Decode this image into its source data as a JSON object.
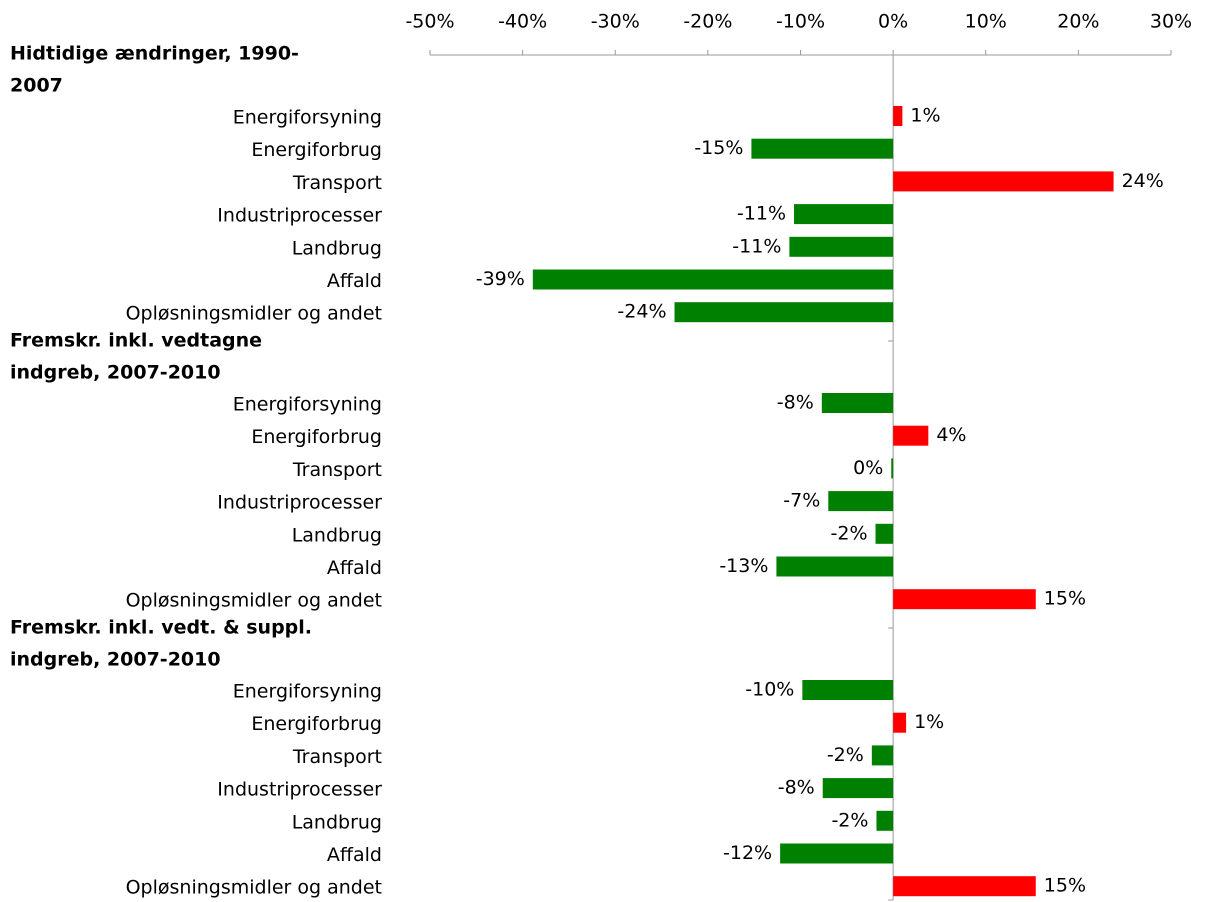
{
  "chart_data": {
    "type": "grouped-hbar",
    "xlim": [
      -50,
      30
    ],
    "xticks": [
      {
        "value": -50,
        "label": "-50%"
      },
      {
        "value": -40,
        "label": "-40%"
      },
      {
        "value": -30,
        "label": "-30%"
      },
      {
        "value": -20,
        "label": "-20%"
      },
      {
        "value": -10,
        "label": "-10%"
      },
      {
        "value": 0,
        "label": "0%"
      },
      {
        "value": 10,
        "label": "10%"
      },
      {
        "value": 20,
        "label": "20%"
      },
      {
        "value": 30,
        "label": "30%"
      }
    ],
    "colors": {
      "positive": "#ff0000",
      "negative": "#008000"
    },
    "groups": [
      {
        "name": [
          "Hidtidige ændringer, 1990-",
          "2007"
        ],
        "categories": [
          "Energiforsyning",
          "Energiforbrug",
          "Transport",
          "Industriprocesser",
          "Landbrug",
          "Affald",
          "Opløsningsmidler og andet"
        ],
        "values": [
          1,
          -15.3,
          23.8,
          -10.7,
          -11.2,
          -38.9,
          -23.6
        ],
        "value_labels": [
          "1%",
          "-15%",
          "24%",
          "-11%",
          "-11%",
          "-39%",
          "-24%"
        ]
      },
      {
        "name": [
          "Fremskr. inkl. vedtagne",
          "indgreb, 2007-2010"
        ],
        "categories": [
          "Energiforsyning",
          "Energiforbrug",
          "Transport",
          "Industriprocesser",
          "Landbrug",
          "Affald",
          "Opløsningsmidler og andet"
        ],
        "values": [
          -7.7,
          3.8,
          -0.2,
          -7.0,
          -1.9,
          -12.6,
          15.4
        ],
        "value_labels": [
          "-8%",
          "4%",
          "0%",
          "-7%",
          "-2%",
          "-13%",
          "15%"
        ]
      },
      {
        "name": [
          "Fremskr. inkl. vedt. & suppl.",
          "indgreb, 2007-2010"
        ],
        "categories": [
          "Energiforsyning",
          "Energiforbrug",
          "Transport",
          "Industriprocesser",
          "Landbrug",
          "Affald",
          "Opløsningsmidler og andet"
        ],
        "values": [
          -9.8,
          1.4,
          -2.3,
          -7.6,
          -1.8,
          -12.2,
          15.4
        ],
        "value_labels": [
          "-10%",
          "1%",
          "-2%",
          "-8%",
          "-2%",
          "-12%",
          "15%"
        ]
      }
    ]
  }
}
